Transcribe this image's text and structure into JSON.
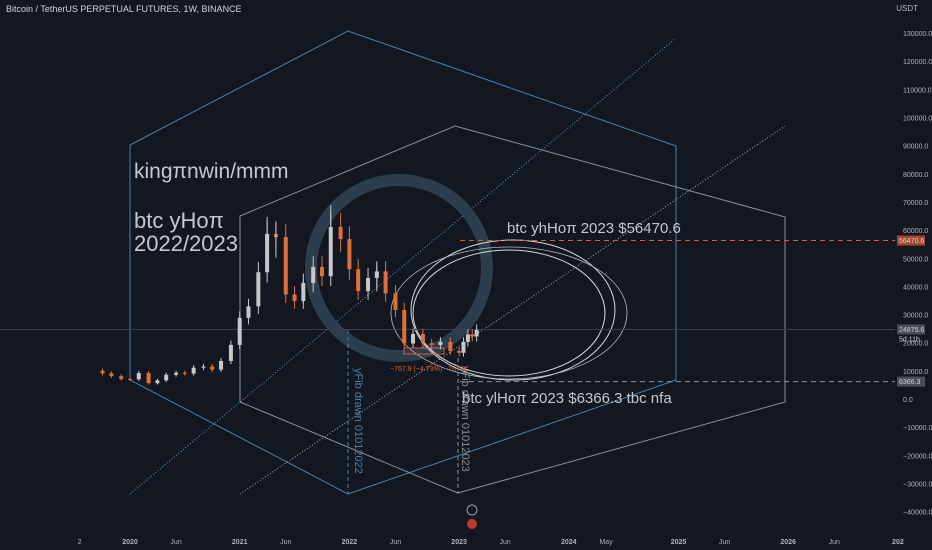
{
  "header": {
    "symbol_line": "Bitcoin / TetherUS PERPETUAL FUTURES, 1W, BINANCE",
    "unit": "USDT"
  },
  "chart_data": {
    "type": "candlestick",
    "ylim": [
      -45000,
      140000
    ],
    "yticks": [
      -40000,
      -30000,
      -20000,
      -10000,
      0,
      10000,
      20000,
      30000,
      40000,
      50000,
      60000,
      70000,
      80000,
      90000,
      100000,
      110000,
      120000,
      130000
    ],
    "ytick_labels": [
      "−40000.0",
      "−30000.0",
      "−20000.0",
      "−10000.0",
      "0.0",
      "10000.0",
      "20000.0",
      "30000.0",
      "40000.0",
      "50000.0",
      "60000.0",
      "70000.0",
      "80000.0",
      "90000.0",
      "100000.0",
      "110000.0",
      "120000.0",
      "130000.0"
    ],
    "xticks": [
      {
        "label": "2",
        "t": 2019.54
      },
      {
        "label": "2020",
        "t": 2020.0
      },
      {
        "label": "Jun",
        "t": 2020.42
      },
      {
        "label": "2021",
        "t": 2021.0
      },
      {
        "label": "Jun",
        "t": 2021.42
      },
      {
        "label": "2022",
        "t": 2022.0
      },
      {
        "label": "Jun",
        "t": 2022.42
      },
      {
        "label": "2023",
        "t": 2023.0
      },
      {
        "label": "Jun",
        "t": 2023.42
      },
      {
        "label": "2024",
        "t": 2024.0
      },
      {
        "label": "May",
        "t": 2024.34
      },
      {
        "label": "2025",
        "t": 2025.0
      },
      {
        "label": "Jun",
        "t": 2025.42
      },
      {
        "label": "2026",
        "t": 2026.0
      },
      {
        "label": "Jun",
        "t": 2026.42
      },
      {
        "label": "202",
        "t": 2027.0
      }
    ],
    "close_series": [
      [
        2019.67,
        10200
      ],
      [
        2019.75,
        9300
      ],
      [
        2019.83,
        8300
      ],
      [
        2019.92,
        7300
      ],
      [
        2020.0,
        7200
      ],
      [
        2020.08,
        9400
      ],
      [
        2020.17,
        5800
      ],
      [
        2020.25,
        6800
      ],
      [
        2020.33,
        8800
      ],
      [
        2020.42,
        9500
      ],
      [
        2020.5,
        9200
      ],
      [
        2020.58,
        11300
      ],
      [
        2020.67,
        11700
      ],
      [
        2020.75,
        10600
      ],
      [
        2020.83,
        13700
      ],
      [
        2020.92,
        19400
      ],
      [
        2021.0,
        29000
      ],
      [
        2021.08,
        33100
      ],
      [
        2021.17,
        45200
      ],
      [
        2021.25,
        58800
      ],
      [
        2021.33,
        57700
      ],
      [
        2021.42,
        37300
      ],
      [
        2021.5,
        35000
      ],
      [
        2021.58,
        41400
      ],
      [
        2021.67,
        47100
      ],
      [
        2021.75,
        43800
      ],
      [
        2021.83,
        61300
      ],
      [
        2021.92,
        57000
      ],
      [
        2022.0,
        46300
      ],
      [
        2022.08,
        38500
      ],
      [
        2022.17,
        43200
      ],
      [
        2022.25,
        45500
      ],
      [
        2022.33,
        37700
      ],
      [
        2022.42,
        31800
      ],
      [
        2022.5,
        19900
      ],
      [
        2022.58,
        23300
      ],
      [
        2022.67,
        20000
      ],
      [
        2022.75,
        19400
      ],
      [
        2022.83,
        20500
      ],
      [
        2022.92,
        17200
      ],
      [
        2023.0,
        16600
      ],
      [
        2023.04,
        20500
      ],
      [
        2023.08,
        23100
      ],
      [
        2023.12,
        22400
      ],
      [
        2023.16,
        24700
      ]
    ],
    "wick_high": [
      [
        2021.25,
        64900
      ],
      [
        2021.83,
        69000
      ],
      [
        2021.33,
        63000
      ],
      [
        2021.58,
        42500
      ],
      [
        2022.25,
        48000
      ]
    ],
    "last_price": {
      "value": 24875.6,
      "label": "24875.6",
      "countdown": "5d 11h"
    },
    "levels": [
      {
        "value": 56470.6,
        "label": "56470.6",
        "color": "#e05a3a"
      },
      {
        "value": 6366.3,
        "label": "6366.3",
        "color": "#8a8f99"
      }
    ],
    "annotations": [
      {
        "text": "kingπnwin/mmm"
      },
      {
        "text": "btc yHoπ"
      },
      {
        "text": "2022/2023"
      },
      {
        "text": "btc yhHoπ 2023 $56470.6"
      },
      {
        "text": "btc ylHoπ 2023 $6366.3 tbc nfa"
      },
      {
        "text": "yFib drawn 01012022"
      },
      {
        "text": "yFib drawn 01012023"
      },
      {
        "text": "−767.9 (−4.73%) −767.9"
      }
    ],
    "colors": {
      "up": "#c8c8c8",
      "down": "#e0703a",
      "blue": "#4f7fa8",
      "gray": "#8a8f99",
      "orange": "#e05a3a"
    }
  }
}
